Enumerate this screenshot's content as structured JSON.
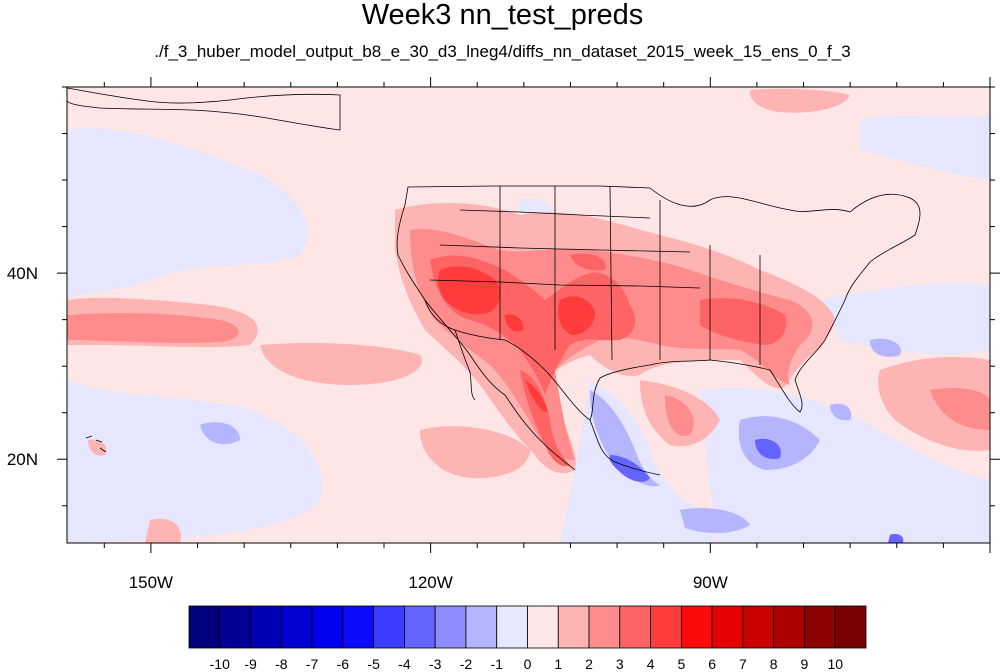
{
  "title": "Week3 nn_test_preds",
  "subtitle": "./f_3_huber_model_output_b8_e_30_d3_lneg4/diffs_nn_dataset_2015_week_15_ens_0_f_3",
  "axes": {
    "lon_ticks": [
      {
        "lon": -150,
        "label": "150W"
      },
      {
        "lon": -120,
        "label": "120W"
      },
      {
        "lon": -90,
        "label": "90W"
      }
    ],
    "lat_ticks": [
      {
        "lat": 40,
        "label": "40N"
      },
      {
        "lat": 20,
        "label": "20N"
      }
    ],
    "lon_range": [
      -159,
      -60
    ],
    "lat_range": [
      11,
      60
    ]
  },
  "colorbar": {
    "labels": [
      "-10",
      "-9",
      "-8",
      "-7",
      "-6",
      "-5",
      "-4",
      "-3",
      "-2",
      "-1",
      "0",
      "1",
      "2",
      "3",
      "4",
      "5",
      "6",
      "7",
      "8",
      "9",
      "10"
    ],
    "colors": [
      "#00007a",
      "#000096",
      "#0000b4",
      "#0000d2",
      "#0000f0",
      "#0a0aff",
      "#3c3cff",
      "#6464ff",
      "#8c8cff",
      "#b4b4ff",
      "#e6e6ff",
      "#ffe6e6",
      "#ffb4b4",
      "#ff8c8c",
      "#ff6464",
      "#ff3c3c",
      "#ff0a0a",
      "#e60000",
      "#c80000",
      "#aa0000",
      "#8c0000",
      "#780000"
    ]
  }
}
